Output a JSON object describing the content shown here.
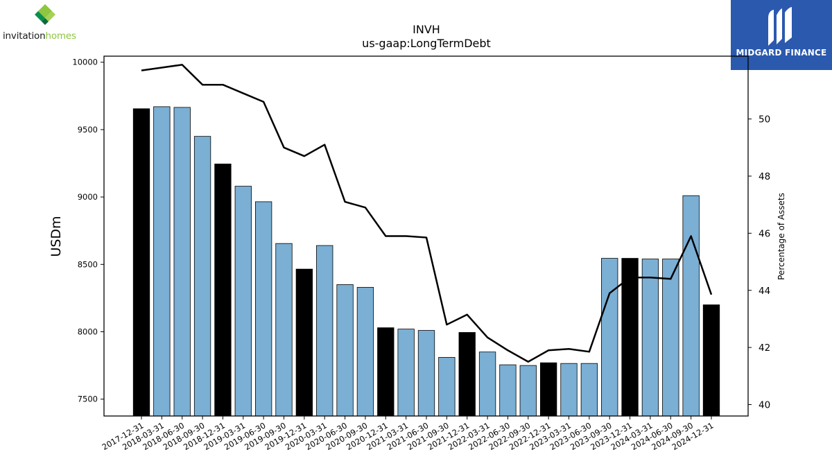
{
  "logos": {
    "left": {
      "word1": "invitation",
      "word2": "homes",
      "icon": "diamond-leaf-icon"
    },
    "right": {
      "name": "MIDGARD FINANCE",
      "icon": "midgard-m-icon",
      "bg": "#2b59ae"
    }
  },
  "chart_data": {
    "type": "bar",
    "title": "INVH",
    "subtitle": "us-gaap:LongTermDebt",
    "ylabel": "USDm",
    "y2label": "Percentage of Assets",
    "ylim": [
      7375,
      10045
    ],
    "y2lim": [
      39.6,
      52.2
    ],
    "yticks": [
      7500,
      8000,
      8500,
      9000,
      9500,
      10000
    ],
    "y2ticks": [
      40,
      42,
      44,
      46,
      48,
      50
    ],
    "categories": [
      "2017-12-31",
      "2018-03-31",
      "2018-06-30",
      "2018-09-30",
      "2018-12-31",
      "2019-03-31",
      "2019-06-30",
      "2019-09-30",
      "2019-12-31",
      "2020-03-31",
      "2020-06-30",
      "2020-09-30",
      "2020-12-31",
      "2021-03-31",
      "2021-06-30",
      "2021-09-30",
      "2021-12-31",
      "2022-03-31",
      "2022-06-30",
      "2022-09-30",
      "2022-12-31",
      "2023-03-31",
      "2023-06-30",
      "2023-09-30",
      "2023-12-31",
      "2024-03-31",
      "2024-06-30",
      "2024-09-30",
      "2024-12-31"
    ],
    "series": [
      {
        "kind": "bar",
        "axis": "left",
        "values": [
          9655,
          9670,
          9665,
          9450,
          9245,
          9080,
          8965,
          8655,
          8465,
          8640,
          8350,
          8330,
          8030,
          8020,
          8010,
          7810,
          7995,
          7850,
          7755,
          7750,
          7770,
          7765,
          7765,
          8545,
          8545,
          8540,
          8540,
          9010,
          8200
        ],
        "annual_color": "#000000",
        "quarter_color": "#7bafd4"
      },
      {
        "kind": "line",
        "axis": "right",
        "color": "#000000",
        "values": [
          51.7,
          51.8,
          51.9,
          51.2,
          51.2,
          50.9,
          50.6,
          49.0,
          48.7,
          49.1,
          47.1,
          46.9,
          45.9,
          45.9,
          45.85,
          42.8,
          43.15,
          42.35,
          41.9,
          41.5,
          41.9,
          41.95,
          41.85,
          43.9,
          44.45,
          44.45,
          44.4,
          45.9,
          43.85
        ]
      }
    ],
    "grid": false,
    "legend": "none"
  }
}
